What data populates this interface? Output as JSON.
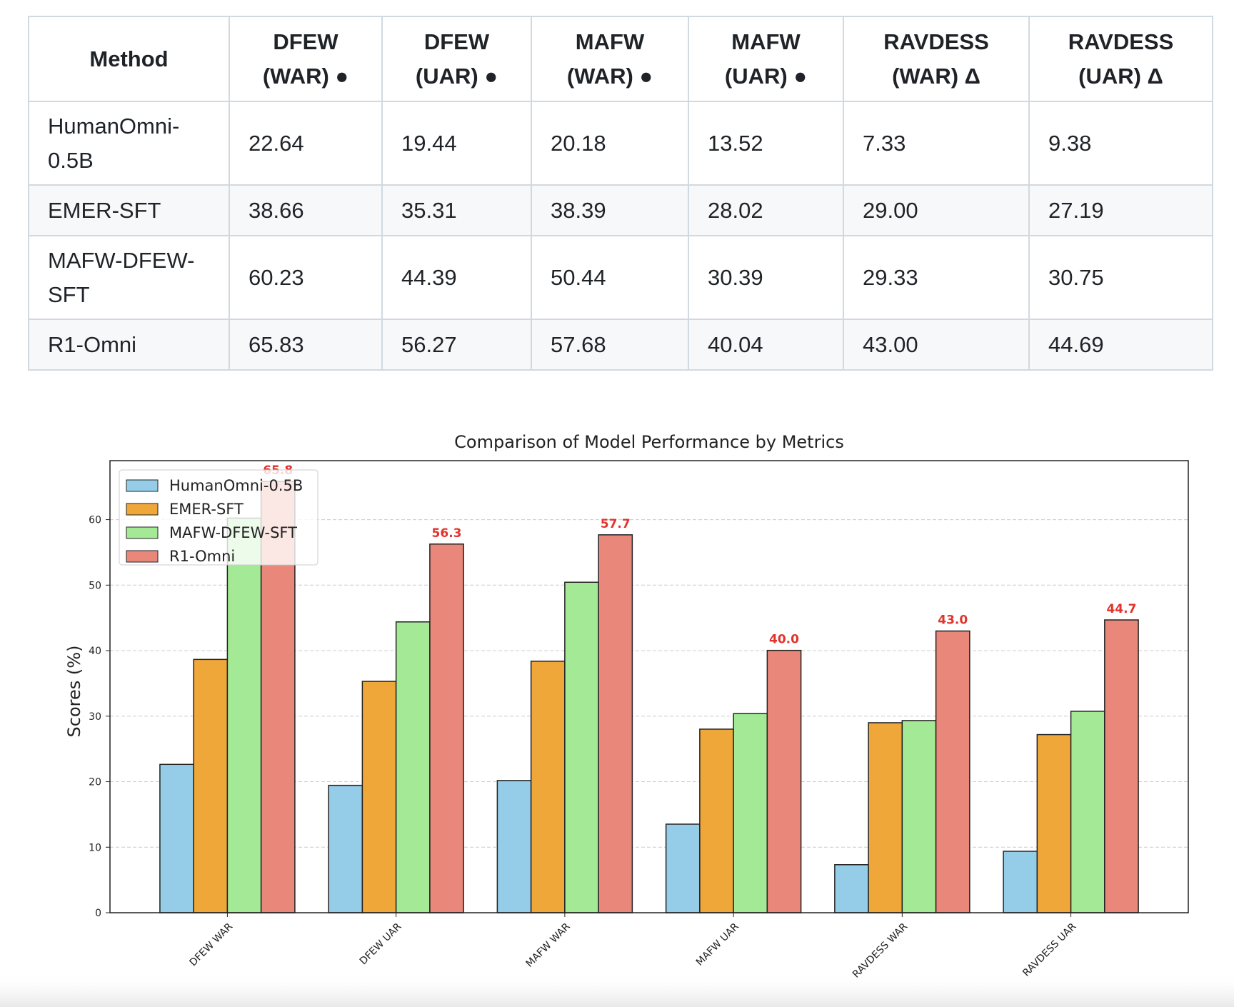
{
  "table": {
    "columns": [
      [
        "Method"
      ],
      [
        "DFEW",
        "(WAR) ●"
      ],
      [
        "DFEW",
        "(UAR) ●"
      ],
      [
        "MAFW",
        "(WAR) ●"
      ],
      [
        "MAFW",
        "(UAR) ●"
      ],
      [
        "RAVDESS",
        "(WAR) Δ"
      ],
      [
        "RAVDESS",
        "(UAR) Δ"
      ]
    ],
    "rows": [
      [
        "HumanOmni-0.5B",
        "22.64",
        "19.44",
        "20.18",
        "13.52",
        "7.33",
        "9.38"
      ],
      [
        "EMER-SFT",
        "38.66",
        "35.31",
        "38.39",
        "28.02",
        "29.00",
        "27.19"
      ],
      [
        "MAFW-DFEW-SFT",
        "60.23",
        "44.39",
        "50.44",
        "30.39",
        "29.33",
        "30.75"
      ],
      [
        "R1-Omni",
        "65.83",
        "56.27",
        "57.68",
        "40.04",
        "43.00",
        "44.69"
      ]
    ]
  },
  "chart_data": {
    "type": "bar",
    "title": "Comparison of Model Performance by Metrics",
    "y_label": "Scores (%)",
    "categories": [
      "DFEW WAR",
      "DFEW UAR",
      "MAFW WAR",
      "MAFW UAR",
      "RAVDESS WAR",
      "RAVDESS UAR"
    ],
    "series": [
      {
        "name": "HumanOmni-0.5B",
        "color": "#95cde8",
        "values": [
          22.64,
          19.44,
          20.18,
          13.52,
          7.33,
          9.38
        ]
      },
      {
        "name": "EMER-SFT",
        "color": "#f0a73a",
        "values": [
          38.66,
          35.31,
          38.39,
          28.02,
          29.0,
          27.19
        ]
      },
      {
        "name": "MAFW-DFEW-SFT",
        "color": "#a4ea96",
        "values": [
          60.23,
          44.39,
          50.44,
          30.39,
          29.33,
          30.75
        ]
      },
      {
        "name": "R1-Omni",
        "color": "#e9877a",
        "values": [
          65.83,
          56.27,
          57.68,
          40.04,
          43.0,
          44.69
        ],
        "value_labels": [
          "65.8",
          "56.3",
          "57.7",
          "40.0",
          "43.0",
          "44.7"
        ],
        "label_color": "#e0332b"
      }
    ],
    "ylim": [
      0,
      69
    ],
    "yticks": [
      0,
      10,
      20,
      30,
      40,
      50,
      60
    ],
    "grid": true,
    "legend": "upper left"
  }
}
